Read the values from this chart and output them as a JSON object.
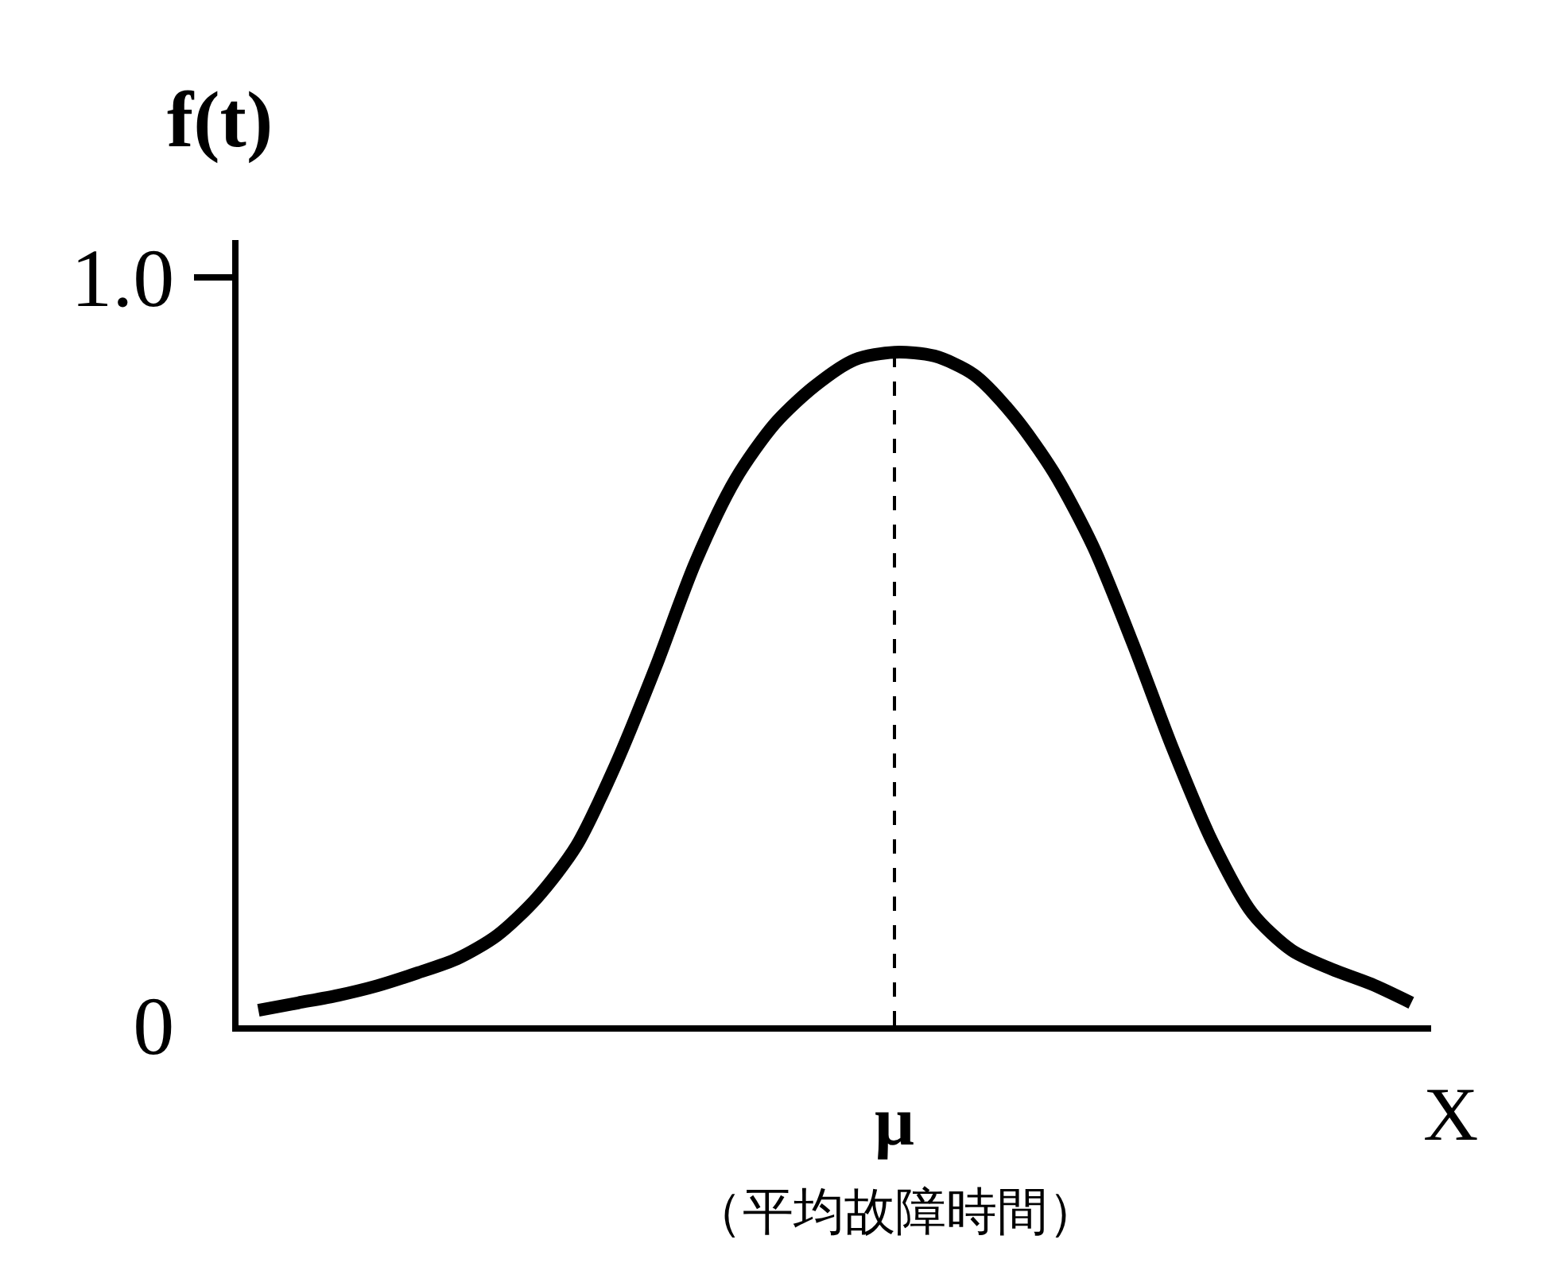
{
  "chart_data": {
    "type": "line",
    "ylabel": "f(t)",
    "xlabel": "X",
    "categories": [
      null,
      null,
      null,
      null,
      null,
      null,
      null,
      null,
      null,
      null,
      null,
      null,
      null,
      null,
      null,
      null,
      "μ",
      null,
      null,
      null,
      null,
      null,
      null,
      null,
      null,
      null,
      null,
      null,
      null,
      null
    ],
    "values": [
      0.02,
      0.03,
      0.04,
      0.053,
      0.07,
      0.089,
      0.12,
      0.17,
      0.24,
      0.35,
      0.48,
      0.62,
      0.73,
      0.805,
      0.855,
      0.89,
      0.9,
      0.895,
      0.87,
      0.815,
      0.74,
      0.64,
      0.51,
      0.37,
      0.245,
      0.15,
      0.1,
      0.075,
      0.055,
      0.03
    ],
    "color": "#000000",
    "line_style": "solid",
    "ylim": [
      0,
      1.05
    ],
    "yticks": [
      0,
      {
        "value": 1,
        "label": "1.0"
      }
    ],
    "ref_lines": [
      {
        "axis": "x",
        "value": "μ",
        "line_style": "dashed",
        "color": "#000000"
      }
    ],
    "annotations": [
      "（平均故障時間）"
    ]
  }
}
